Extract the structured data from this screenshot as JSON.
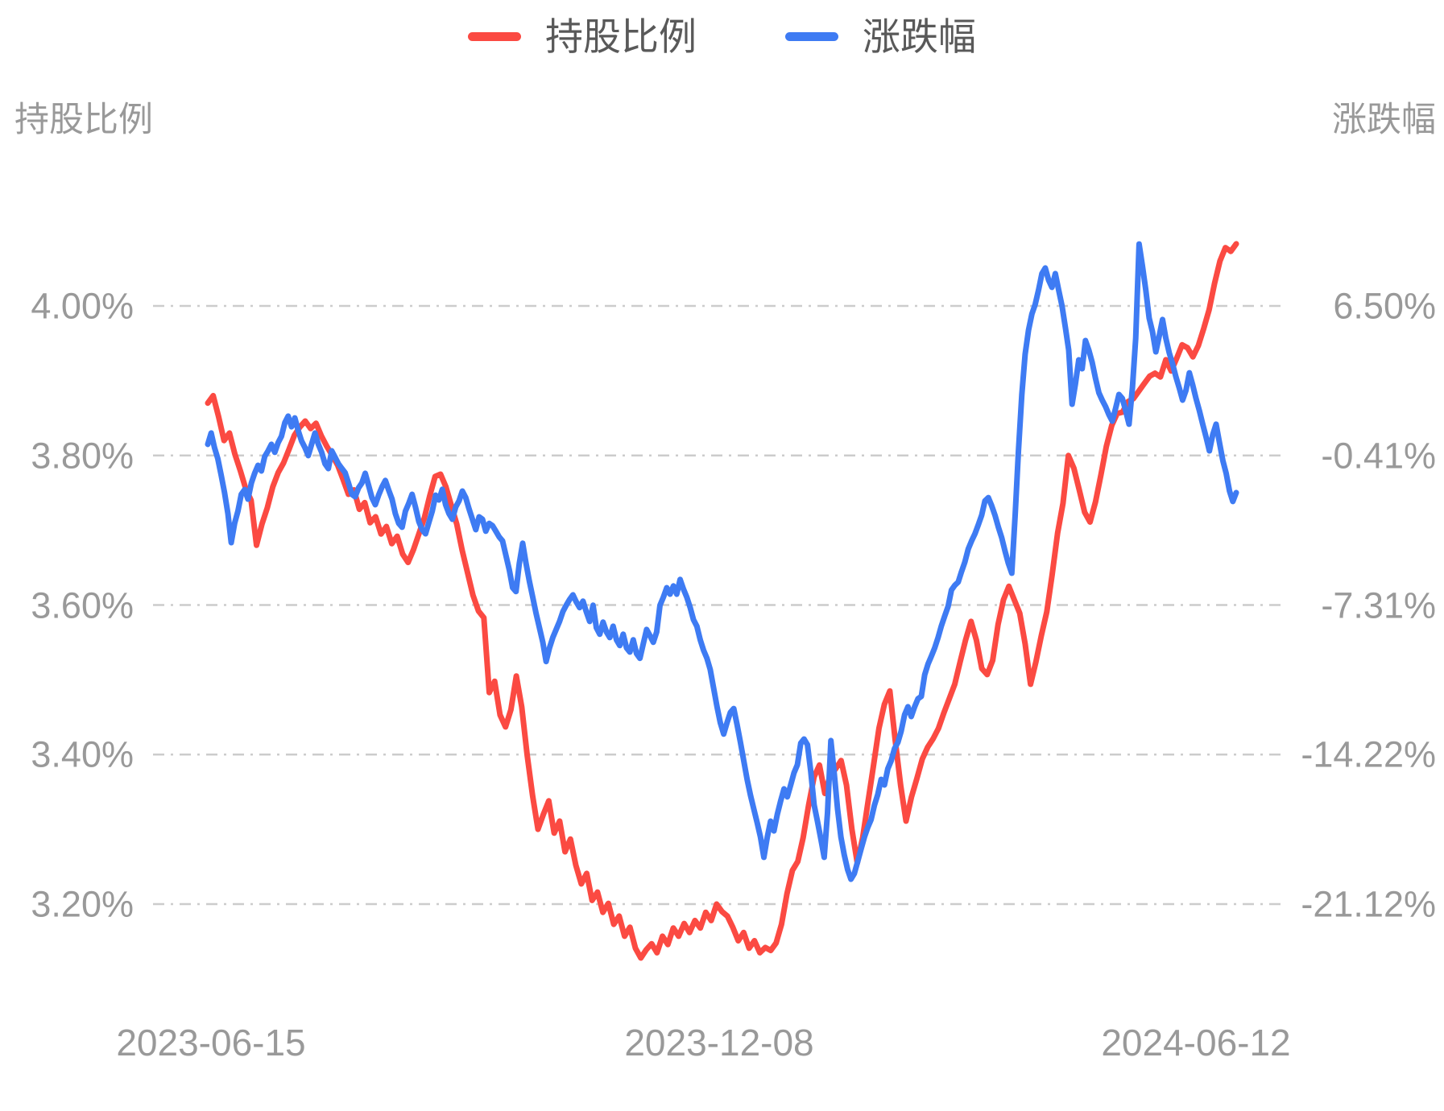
{
  "chart_data": {
    "type": "line",
    "title": "",
    "legend_position": "top-center",
    "grid": "horizontal-dash-dot",
    "x_axis": {
      "type": "time",
      "tick_labels": [
        "2023-06-15",
        "2023-12-08",
        "2024-06-12"
      ],
      "range_start": "2023-06-15",
      "range_end": "2024-06-12"
    },
    "left_axis": {
      "title": "持股比例",
      "unit": "%",
      "max": 4.0,
      "min": 3.2,
      "ticks": [
        "4.00%",
        "3.80%",
        "3.60%",
        "3.40%",
        "3.20%"
      ],
      "tick_values": [
        4.0,
        3.8,
        3.6,
        3.4,
        3.2
      ]
    },
    "right_axis": {
      "title": "涨跌幅",
      "unit": "%",
      "max": 6.5,
      "min": -21.12,
      "ticks": [
        "6.50%",
        "-0.41%",
        "-7.31%",
        "-14.22%",
        "-21.12%"
      ],
      "tick_values": [
        6.5,
        -0.41,
        -7.31,
        -14.22,
        -21.12
      ]
    },
    "series": [
      {
        "name": "持股比例",
        "axis": "left",
        "color": "#fb4a42",
        "unit": "%",
        "values": [
          3.87,
          3.88,
          3.852,
          3.82,
          3.83,
          3.802,
          3.78,
          3.756,
          3.74,
          3.68,
          3.708,
          3.73,
          3.758,
          3.777,
          3.79,
          3.808,
          3.827,
          3.838,
          3.846,
          3.836,
          3.843,
          3.826,
          3.812,
          3.8,
          3.787,
          3.768,
          3.748,
          3.754,
          3.728,
          3.737,
          3.71,
          3.718,
          3.695,
          3.705,
          3.682,
          3.692,
          3.668,
          3.657,
          3.674,
          3.695,
          3.716,
          3.746,
          3.772,
          3.775,
          3.758,
          3.733,
          3.708,
          3.673,
          3.643,
          3.613,
          3.592,
          3.583,
          3.483,
          3.498,
          3.453,
          3.437,
          3.46,
          3.505,
          3.464,
          3.4,
          3.345,
          3.3,
          3.32,
          3.338,
          3.295,
          3.311,
          3.27,
          3.287,
          3.252,
          3.227,
          3.241,
          3.205,
          3.216,
          3.189,
          3.201,
          3.173,
          3.184,
          3.157,
          3.169,
          3.141,
          3.128,
          3.139,
          3.147,
          3.135,
          3.157,
          3.146,
          3.168,
          3.157,
          3.174,
          3.162,
          3.178,
          3.168,
          3.189,
          3.178,
          3.2,
          3.19,
          3.184,
          3.169,
          3.151,
          3.162,
          3.141,
          3.151,
          3.135,
          3.142,
          3.138,
          3.148,
          3.173,
          3.214,
          3.245,
          3.257,
          3.289,
          3.332,
          3.37,
          3.386,
          3.348,
          3.372,
          3.381,
          3.392,
          3.359,
          3.3,
          3.255,
          3.289,
          3.338,
          3.386,
          3.435,
          3.467,
          3.485,
          3.419,
          3.359,
          3.311,
          3.343,
          3.368,
          3.394,
          3.41,
          3.421,
          3.435,
          3.456,
          3.475,
          3.494,
          3.524,
          3.553,
          3.578,
          3.553,
          3.515,
          3.507,
          3.526,
          3.574,
          3.607,
          3.625,
          3.607,
          3.589,
          3.548,
          3.494,
          3.524,
          3.559,
          3.591,
          3.641,
          3.696,
          3.736,
          3.8,
          3.783,
          3.754,
          3.724,
          3.711,
          3.738,
          3.774,
          3.812,
          3.84,
          3.856,
          3.858,
          3.872,
          3.876,
          3.886,
          3.896,
          3.906,
          3.91,
          3.905,
          3.928,
          3.913,
          3.93,
          3.948,
          3.944,
          3.932,
          3.947,
          3.97,
          3.995,
          4.03,
          4.06,
          4.078,
          4.073,
          4.083
        ]
      },
      {
        "name": "涨跌幅",
        "axis": "right",
        "color": "#3e7bf3",
        "unit": "%",
        "values": [
          0.11,
          0.63,
          -0.04,
          -0.56,
          -1.31,
          -2.12,
          -3.09,
          -4.43,
          -3.54,
          -2.98,
          -2.2,
          -1.98,
          -2.42,
          -1.68,
          -1.23,
          -0.86,
          -1.12,
          -0.45,
          -0.19,
          0.11,
          -0.26,
          0.19,
          0.48,
          1.11,
          1.41,
          0.92,
          1.33,
          0.74,
          0.26,
          -0.04,
          -0.41,
          0.11,
          0.63,
          0.11,
          -0.26,
          -0.79,
          -1.01,
          -0.19,
          -0.49,
          -0.79,
          -1.0,
          -1.2,
          -1.68,
          -2.2,
          -2.31,
          -1.9,
          -1.68,
          -1.23,
          -1.79,
          -2.35,
          -2.68,
          -2.24,
          -1.86,
          -1.56,
          -2.0,
          -2.42,
          -3.09,
          -3.54,
          -3.72,
          -2.98,
          -2.61,
          -2.2,
          -2.79,
          -3.46,
          -3.83,
          -4.02,
          -3.5,
          -2.98,
          -2.24,
          -2.46,
          -1.97,
          -2.68,
          -3.09,
          -3.35,
          -2.79,
          -2.5,
          -2.05,
          -2.35,
          -2.87,
          -3.35,
          -3.83,
          -3.24,
          -3.35,
          -3.9,
          -3.54,
          -3.65,
          -3.9,
          -4.17,
          -4.35,
          -5.02,
          -5.69,
          -6.51,
          -6.69,
          -5.39,
          -4.46,
          -5.39,
          -6.21,
          -6.95,
          -7.69,
          -8.36,
          -9.03,
          -9.92,
          -9.29,
          -8.81,
          -8.44,
          -8.07,
          -7.62,
          -7.32,
          -7.06,
          -6.84,
          -7.17,
          -7.43,
          -7.13,
          -7.62,
          -8.07,
          -7.32,
          -8.36,
          -8.66,
          -8.1,
          -8.55,
          -8.81,
          -8.29,
          -8.92,
          -9.18,
          -8.66,
          -9.29,
          -9.48,
          -8.92,
          -9.55,
          -9.77,
          -9.11,
          -8.44,
          -8.73,
          -9.03,
          -8.55,
          -7.32,
          -6.95,
          -6.51,
          -6.81,
          -6.43,
          -6.81,
          -6.13,
          -6.58,
          -6.95,
          -7.43,
          -7.99,
          -8.29,
          -8.92,
          -9.4,
          -9.77,
          -10.29,
          -11.15,
          -12.0,
          -12.75,
          -13.27,
          -12.75,
          -12.27,
          -12.09,
          -12.83,
          -13.65,
          -14.5,
          -15.36,
          -16.1,
          -16.73,
          -17.37,
          -18.03,
          -18.96,
          -18.03,
          -17.29,
          -17.74,
          -16.99,
          -16.36,
          -15.8,
          -16.17,
          -15.62,
          -15.06,
          -14.69,
          -13.69,
          -13.5,
          -13.76,
          -14.99,
          -16.54,
          -17.29,
          -18.1,
          -18.96,
          -16.92,
          -13.57,
          -15.06,
          -16.73,
          -18.03,
          -18.85,
          -19.53,
          -19.97,
          -19.71,
          -19.15,
          -18.59,
          -18.03,
          -17.59,
          -17.22,
          -16.55,
          -16.06,
          -15.36,
          -15.62,
          -14.87,
          -14.5,
          -13.94,
          -13.65,
          -13.13,
          -12.38,
          -12.01,
          -12.46,
          -12.01,
          -11.64,
          -11.53,
          -10.53,
          -10.04,
          -9.67,
          -9.29,
          -8.81,
          -8.26,
          -7.81,
          -7.37,
          -6.62,
          -6.4,
          -6.25,
          -5.77,
          -5.32,
          -4.73,
          -4.35,
          -4.02,
          -3.61,
          -3.17,
          -2.5,
          -2.35,
          -2.72,
          -3.17,
          -3.72,
          -4.2,
          -4.83,
          -5.39,
          -5.84,
          -3.17,
          -0.19,
          2.41,
          4.27,
          5.38,
          6.13,
          6.57,
          7.24,
          7.99,
          8.25,
          7.69,
          7.36,
          7.99,
          7.24,
          6.5,
          5.5,
          4.46,
          1.96,
          2.89,
          4.01,
          3.6,
          4.9,
          4.46,
          3.9,
          3.15,
          2.49,
          2.15,
          1.85,
          1.48,
          1.18,
          1.78,
          2.41,
          2.23,
          1.67,
          1.04,
          2.71,
          5.01,
          9.36,
          8.36,
          7.24,
          5.94,
          5.31,
          4.38,
          5.09,
          5.87,
          5.01,
          4.34,
          3.82,
          3.23,
          2.71,
          2.15,
          2.6,
          3.41,
          2.86,
          2.22,
          1.67,
          1.04,
          0.44,
          -0.19,
          0.56,
          1.04,
          0.19,
          -0.64,
          -1.23,
          -2.05,
          -2.53,
          -2.12
        ]
      }
    ]
  },
  "colors": {
    "background": "#ffffff",
    "grid_line": "#cccccc",
    "tick_text": "#999999",
    "axis_title_text": "#999999",
    "legend_text": "#595959",
    "series_red": "#fb4a42",
    "series_blue": "#3e7bf3"
  }
}
